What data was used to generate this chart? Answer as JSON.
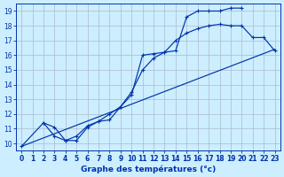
{
  "xlabel": "Graphe des températures (°c)",
  "bg_color": "#cceeff",
  "grid_color": "#aabbcc",
  "line_color": "#0033aa",
  "xlim": [
    -0.5,
    23.5
  ],
  "ylim": [
    9.5,
    19.5
  ],
  "xticks": [
    0,
    1,
    2,
    3,
    4,
    5,
    6,
    7,
    8,
    9,
    10,
    11,
    12,
    13,
    14,
    15,
    16,
    17,
    18,
    19,
    20,
    21,
    22,
    23
  ],
  "yticks": [
    10,
    11,
    12,
    13,
    14,
    15,
    16,
    17,
    18,
    19
  ],
  "curve1_x": [
    0,
    2,
    3,
    4,
    5,
    6,
    7,
    8,
    9,
    10,
    11,
    12,
    13,
    14,
    15,
    16,
    17,
    18,
    19,
    20
  ],
  "curve1_y": [
    9.8,
    11.4,
    10.5,
    10.2,
    10.2,
    11.1,
    11.5,
    11.6,
    12.5,
    13.3,
    16.0,
    16.1,
    16.2,
    16.3,
    18.6,
    19.0,
    19.0,
    19.0,
    19.2,
    19.2
  ],
  "curve2_x": [
    2,
    3,
    4,
    5,
    6,
    7,
    8,
    9,
    10,
    11,
    12,
    13,
    14,
    15,
    16,
    17,
    18,
    19,
    20,
    21,
    22,
    23
  ],
  "curve2_y": [
    11.4,
    11.1,
    10.2,
    10.5,
    11.2,
    11.5,
    12.0,
    12.5,
    13.5,
    15.0,
    15.8,
    16.2,
    17.0,
    17.5,
    17.8,
    18.0,
    18.1,
    18.0,
    18.0,
    17.2,
    17.2,
    16.3
  ],
  "curve3_x": [
    0,
    23
  ],
  "curve3_y": [
    9.8,
    16.4
  ]
}
